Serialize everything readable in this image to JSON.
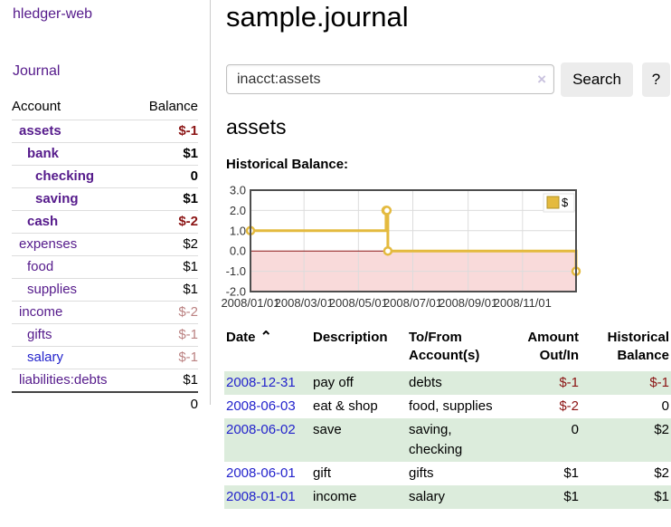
{
  "sidebar": {
    "brand": "hledger-web",
    "nav": {
      "journal": "Journal"
    },
    "accounts_table": {
      "headers": {
        "account": "Account",
        "balance": "Balance"
      },
      "rows": [
        {
          "name": "assets",
          "balance": "$-1",
          "level": 1,
          "matched": true,
          "neg": "strong",
          "link": "purple"
        },
        {
          "name": "bank",
          "balance": "$1",
          "level": 2,
          "matched": true,
          "neg": null,
          "link": "purple"
        },
        {
          "name": "checking",
          "balance": "0",
          "level": 3,
          "matched": true,
          "neg": null,
          "link": "purple"
        },
        {
          "name": "saving",
          "balance": "$1",
          "level": 3,
          "matched": true,
          "neg": null,
          "link": "purple"
        },
        {
          "name": "cash",
          "balance": "$-2",
          "level": 2,
          "matched": true,
          "neg": "strong",
          "link": "purple"
        },
        {
          "name": "expenses",
          "balance": "$2",
          "level": 1,
          "matched": false,
          "neg": null,
          "link": "purple"
        },
        {
          "name": "food",
          "balance": "$1",
          "level": 2,
          "matched": false,
          "neg": null,
          "link": "purple"
        },
        {
          "name": "supplies",
          "balance": "$1",
          "level": 2,
          "matched": false,
          "neg": null,
          "link": "purple"
        },
        {
          "name": "income",
          "balance": "$-2",
          "level": 1,
          "matched": false,
          "neg": "muted",
          "link": "purple"
        },
        {
          "name": "gifts",
          "balance": "$-1",
          "level": 2,
          "matched": false,
          "neg": "muted",
          "link": "purple"
        },
        {
          "name": "salary",
          "balance": "$-1",
          "level": 2,
          "matched": false,
          "neg": "muted",
          "link": "blue"
        },
        {
          "name": "liabilities:debts",
          "balance": "$1",
          "level": 1,
          "matched": false,
          "neg": null,
          "link": "purple"
        }
      ],
      "total": "0"
    }
  },
  "header": {
    "title": "sample.journal"
  },
  "search": {
    "value": "inacct:assets",
    "clear_label": "×",
    "button_label": "Search",
    "help_label": "?"
  },
  "content": {
    "account_heading": "assets",
    "chart_label": "Historical Balance:"
  },
  "chart_data": {
    "type": "line",
    "step": true,
    "title": "Historical Balance",
    "x_range": [
      "2008-01-01",
      "2008-12-31"
    ],
    "ylim": [
      -2,
      3
    ],
    "x_tick_dates": [
      "2008-01-01",
      "2008-03-01",
      "2008-05-01",
      "2008-07-01",
      "2008-09-01",
      "2008-11-01"
    ],
    "x_tick_labels": [
      "2008/01/01",
      "2008/03/01",
      "2008/05/01",
      "2008/07/01",
      "2008/09/01",
      "2008/11/01"
    ],
    "y_tick_values": [
      3,
      2,
      1,
      0,
      -1,
      -2
    ],
    "y_tick_labels": [
      "3.0",
      "2.0",
      "1.0",
      "0.0",
      "-1.0",
      "-2.0"
    ],
    "series": [
      {
        "name": "$",
        "color": "#e4ba3e",
        "points": [
          {
            "date": "2008-01-01",
            "value": 1
          },
          {
            "date": "2008-06-01",
            "value": 2
          },
          {
            "date": "2008-06-02",
            "value": 2
          },
          {
            "date": "2008-06-03",
            "value": 0
          },
          {
            "date": "2008-12-31",
            "value": -1
          }
        ]
      }
    ],
    "legend": {
      "position": "top-right"
    },
    "grid": true,
    "grid_color": "#dcdcdc",
    "negative_region_fill": "#f9dada",
    "zero_line_color": "#8c1717",
    "border_color": "#4d4d4d"
  },
  "register": {
    "headers": {
      "date": "Date",
      "sort_indicator": "⌃",
      "description": "Description",
      "accounts": "To/From Account(s)",
      "amount": "Amount Out/In",
      "balance": "Historical Balance"
    },
    "rows": [
      {
        "date": "2008-12-31",
        "description": "pay off",
        "accounts": "debts",
        "amount": "$-1",
        "balance": "$-1",
        "shaded": true
      },
      {
        "date": "2008-06-03",
        "description": "eat & shop",
        "accounts": "food, supplies",
        "amount": "$-2",
        "balance": "0",
        "shaded": false
      },
      {
        "date": "2008-06-02",
        "description": "save",
        "accounts": "saving, checking",
        "amount": "0",
        "balance": "$2",
        "shaded": true
      },
      {
        "date": "2008-06-01",
        "description": "gift",
        "accounts": "gifts",
        "amount": "$1",
        "balance": "$2",
        "shaded": false
      },
      {
        "date": "2008-01-01",
        "description": "income",
        "accounts": "salary",
        "amount": "$1",
        "balance": "$1",
        "shaded": true
      }
    ]
  },
  "colors": {
    "link_purple": "#551a8b",
    "link_blue": "#2323cc",
    "negative_strong": "#8b1414",
    "negative_muted": "#bb8282",
    "row_shade_green": "#dcecdc",
    "chart_line_gold": "#e4ba3e",
    "chart_negative_pink": "#f9dada",
    "chart_zero_line": "#8c1717"
  }
}
